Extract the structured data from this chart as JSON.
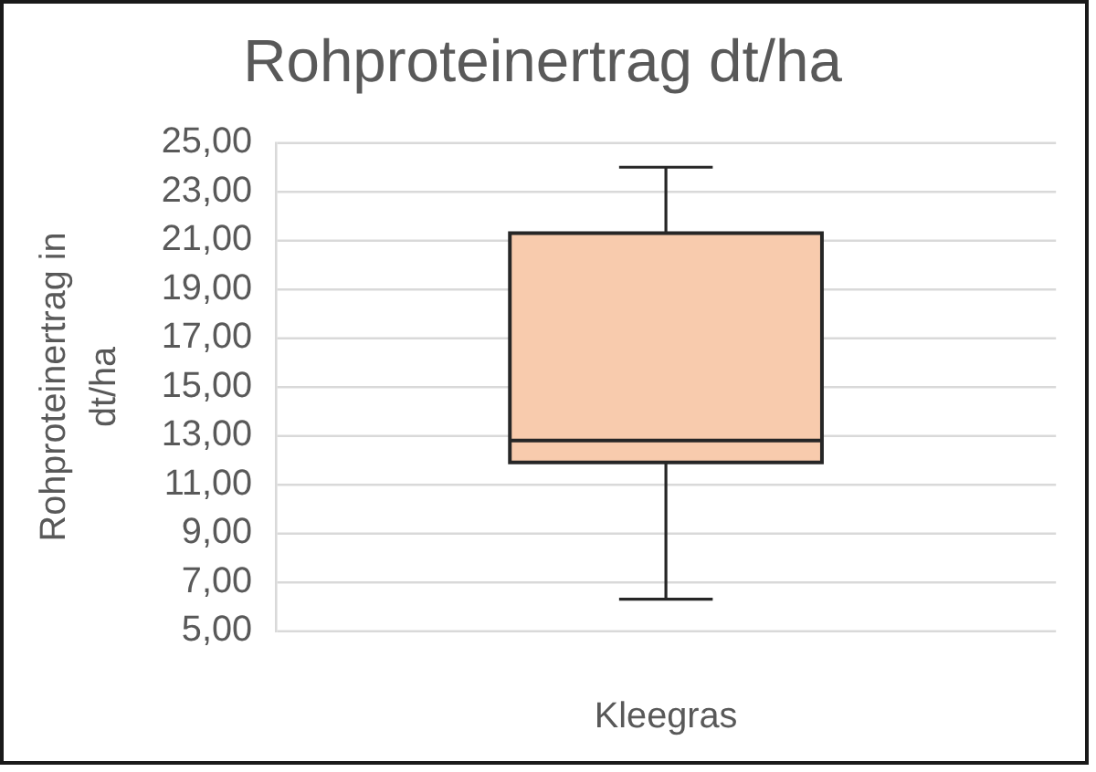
{
  "chart_data": {
    "type": "box",
    "title": "Rohproteinertrag dt/ha",
    "ylabel": "Rohproteinertrag in dt/ha",
    "categories": [
      "Kleegras"
    ],
    "series": [
      {
        "color": "#f8cbad",
        "boxes": [
          {
            "low": 6.3,
            "q1": 11.9,
            "median": 12.8,
            "q3": 21.3,
            "high": 24.0
          }
        ]
      }
    ],
    "ylim": [
      5,
      25
    ],
    "yticks": [
      {
        "value": 5,
        "label": "5,00"
      },
      {
        "value": 7,
        "label": "7,00"
      },
      {
        "value": 9,
        "label": "9,00"
      },
      {
        "value": 11,
        "label": "11,00"
      },
      {
        "value": 13,
        "label": "13,00"
      },
      {
        "value": 15,
        "label": "15,00"
      },
      {
        "value": 17,
        "label": "17,00"
      },
      {
        "value": 19,
        "label": "19,00"
      },
      {
        "value": 21,
        "label": "21,00"
      },
      {
        "value": 23,
        "label": "23,00"
      },
      {
        "value": 25,
        "label": "25,00"
      }
    ],
    "grid": "y"
  }
}
